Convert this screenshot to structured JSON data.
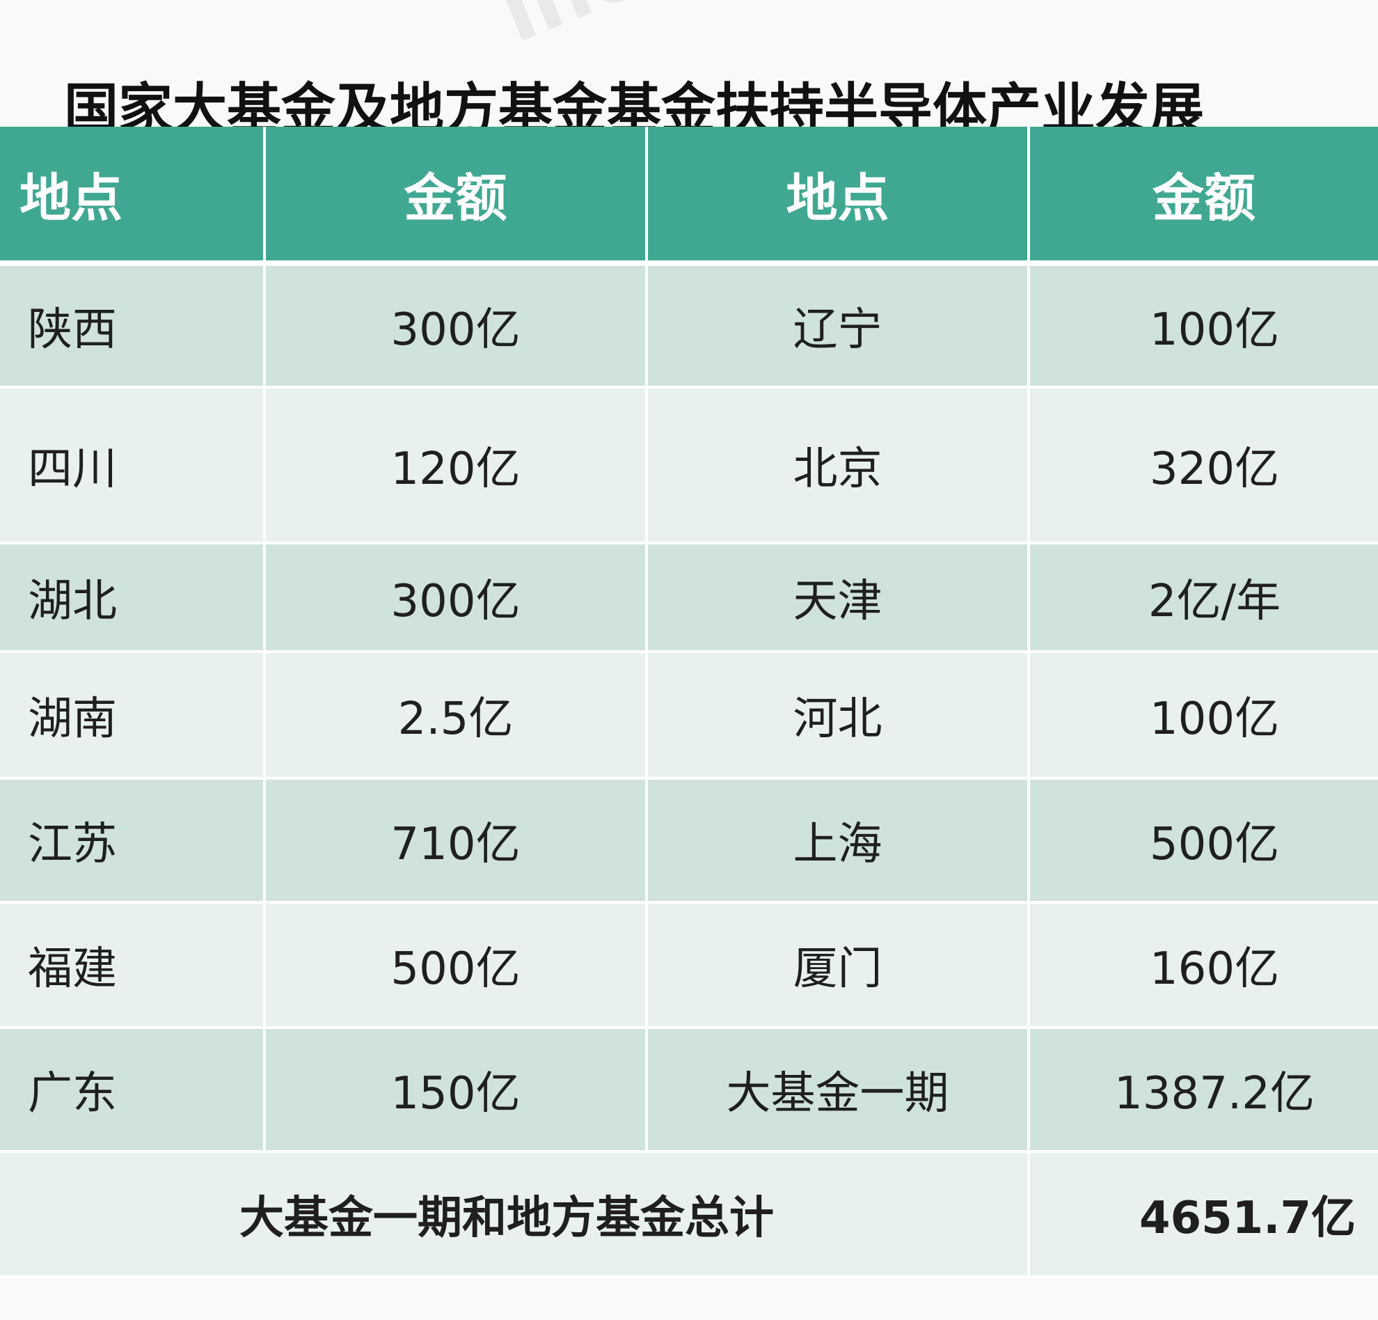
{
  "title": "国家大基金及地方基金基金扶持半导体产业发展",
  "watermark": "incaijiao",
  "chart_data": {
    "type": "table",
    "headers": [
      "地点",
      "金额",
      "地点",
      "金额"
    ],
    "rows": [
      [
        "陕西",
        "300亿",
        "辽宁",
        "100亿"
      ],
      [
        "四川",
        "120亿",
        "北京",
        "320亿"
      ],
      [
        "湖北",
        "300亿",
        "天津",
        "2亿/年"
      ],
      [
        "湖南",
        "2.5亿",
        "河北",
        "100亿"
      ],
      [
        "江苏",
        "710亿",
        "上海",
        "500亿"
      ],
      [
        "福建",
        "500亿",
        "厦门",
        "160亿"
      ],
      [
        "广东",
        "150亿",
        "大基金一期",
        "1387.2亿"
      ]
    ],
    "total": {
      "label": "大基金一期和地方基金总计",
      "value": "4651.7亿"
    },
    "colors": {
      "header_bg": "#40a892",
      "row_dark": "#cfe2dd",
      "row_light": "#e8f1ee"
    }
  }
}
